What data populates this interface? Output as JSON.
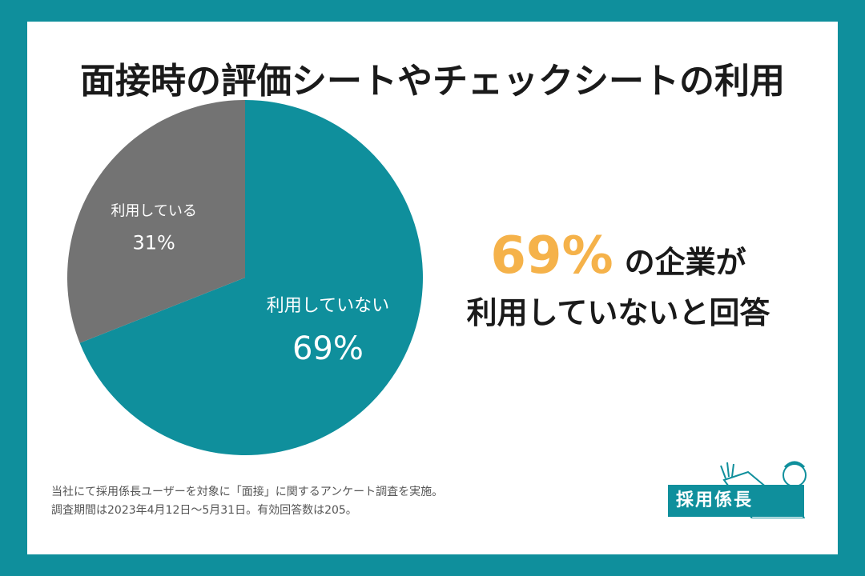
{
  "title": "面接時の評価シートやチェックシートの利用",
  "chart_data": {
    "type": "pie",
    "title": "面接時の評価シートやチェックシートの利用",
    "slices": [
      {
        "label": "利用していない",
        "value": 69,
        "value_label": "69%",
        "color": "#0f8f9c"
      },
      {
        "label": "利用している",
        "value": 31,
        "value_label": "31%",
        "color": "#737373"
      }
    ],
    "start": "12 o'clock, clockwise"
  },
  "callout": {
    "percent": "69%",
    "line1_rest": "の企業が",
    "line2": "利用していないと回答"
  },
  "footnote": {
    "line1": "当社にて採用係長ユーザーを対象に「面接」に関するアンケート調査を実施。",
    "line2": "調査期間は2023年4月12日〜5月31日。有効回答数は205。"
  },
  "logo": {
    "text": "採用係長"
  },
  "colors": {
    "border": "#0f8f9c",
    "accent": "#f5b24a",
    "text": "#1a1a1a"
  }
}
